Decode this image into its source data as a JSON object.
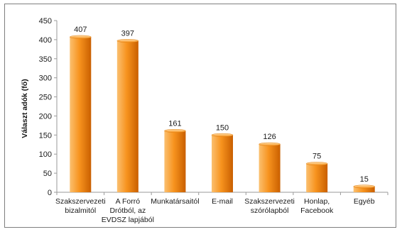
{
  "chart_data": {
    "type": "bar",
    "ylabel": "Választ adók (fő)",
    "xlabel": "",
    "ylim": [
      0,
      450
    ],
    "yticks": [
      0,
      50,
      100,
      150,
      200,
      250,
      300,
      350,
      400,
      450
    ],
    "categories": [
      [
        "Szakszervezeti",
        "bizalmitól"
      ],
      [
        "A Forró",
        "Drótból, az",
        "EVDSZ lapjából"
      ],
      [
        "Munkatársaitól"
      ],
      [
        "E-mail"
      ],
      [
        "Szakszervezeti",
        "szórólapból"
      ],
      [
        "Honlap,",
        "Facebook"
      ],
      [
        "Egyéb"
      ]
    ],
    "values": [
      407,
      397,
      161,
      150,
      126,
      75,
      15
    ],
    "grid": false,
    "legend": "none",
    "colors": {
      "bar_light": "#fbc070",
      "bar_mid": "#f7931e",
      "bar_dark": "#c95f00",
      "axis": "#9a9a9a"
    }
  }
}
